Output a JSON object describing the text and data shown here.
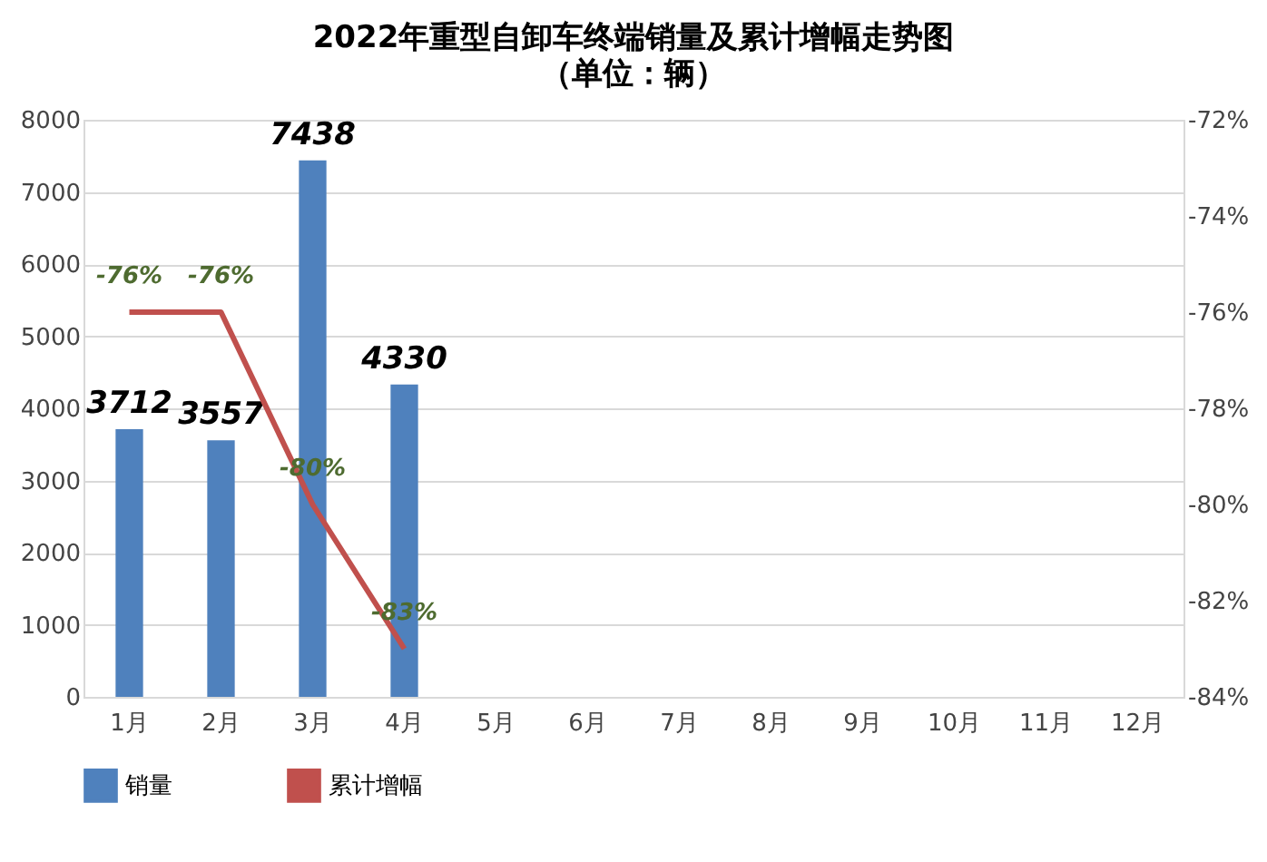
{
  "chart_data": {
    "type": "bar",
    "title": "2022年重型自卸车终端销量及累计增幅走势图",
    "subtitle": "（单位：辆）",
    "categories": [
      "1月",
      "2月",
      "3月",
      "4月",
      "5月",
      "6月",
      "7月",
      "8月",
      "9月",
      "10月",
      "11月",
      "12月"
    ],
    "series": [
      {
        "name": "销量",
        "color": "#4f81bd",
        "values": [
          3712,
          3557,
          7438,
          4330,
          null,
          null,
          null,
          null,
          null,
          null,
          null,
          null
        ]
      },
      {
        "name": "累计增幅",
        "type": "line",
        "axis": "y2",
        "color": "#c0504d",
        "values": [
          -76,
          -76,
          -80,
          -83,
          null,
          null,
          null,
          null,
          null,
          null,
          null,
          null
        ],
        "value_labels": [
          "-76%",
          "-76%",
          "-80%",
          "-83%",
          null,
          null,
          null,
          null,
          null,
          null,
          null,
          null
        ]
      }
    ],
    "data_labels": true,
    "ylim": [
      0,
      8000
    ],
    "yticks": [
      0,
      1000,
      2000,
      3000,
      4000,
      5000,
      6000,
      7000,
      8000
    ],
    "y2lim": [
      -84,
      -72
    ],
    "y2ticks": [
      {
        "value": -84,
        "label": "-84%"
      },
      {
        "value": -82,
        "label": "-82%"
      },
      {
        "value": -80,
        "label": "-80%"
      },
      {
        "value": -78,
        "label": "-78%"
      },
      {
        "value": -76,
        "label": "-76%"
      },
      {
        "value": -74,
        "label": "-74%"
      },
      {
        "value": -72,
        "label": "-72%"
      }
    ],
    "grid": "y",
    "legend": "bottom"
  }
}
